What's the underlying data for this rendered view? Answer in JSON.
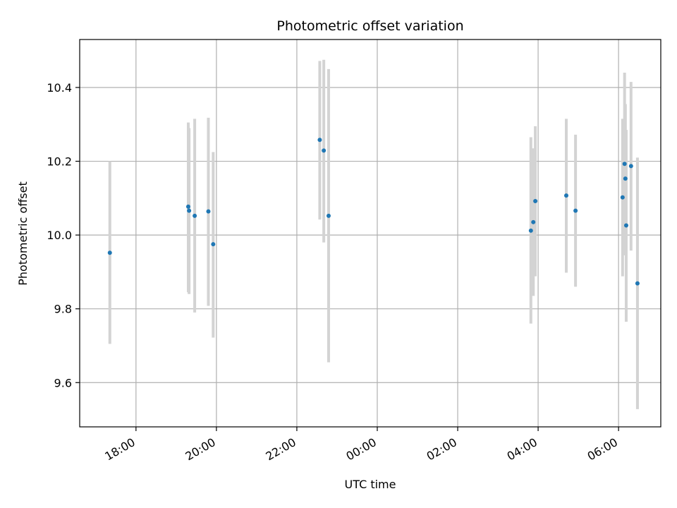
{
  "chart_data": {
    "type": "scatter",
    "title": "Photometric offset variation",
    "xlabel": "UTC time",
    "ylabel": "Photometric offset",
    "xlim_hours": [
      16.6,
      31.05
    ],
    "ylim": [
      9.48,
      10.53
    ],
    "x_ticks": [
      {
        "label": "18:00",
        "hour": 18
      },
      {
        "label": "20:00",
        "hour": 20
      },
      {
        "label": "22:00",
        "hour": 22
      },
      {
        "label": "00:00",
        "hour": 24
      },
      {
        "label": "02:00",
        "hour": 26
      },
      {
        "label": "04:00",
        "hour": 28
      },
      {
        "label": "06:00",
        "hour": 30
      }
    ],
    "y_ticks": [
      9.6,
      9.8,
      10.0,
      10.2,
      10.4
    ],
    "grid": true,
    "point_color": "#1f77b4",
    "errorbar_color": "#d3d3d3",
    "points": [
      {
        "time": "17:20",
        "hour": 17.35,
        "y": 9.952,
        "err_low": 9.705,
        "err_high": 10.2
      },
      {
        "time": "19:18",
        "hour": 19.3,
        "y": 10.077,
        "err_low": 9.845,
        "err_high": 10.305
      },
      {
        "time": "19:19",
        "hour": 19.32,
        "y": 10.066,
        "err_low": 9.84,
        "err_high": 10.29
      },
      {
        "time": "19:28",
        "hour": 19.46,
        "y": 10.052,
        "err_low": 9.79,
        "err_high": 10.315
      },
      {
        "time": "19:48",
        "hour": 19.8,
        "y": 10.064,
        "err_low": 9.808,
        "err_high": 10.318
      },
      {
        "time": "19:55",
        "hour": 19.92,
        "y": 9.975,
        "err_low": 9.722,
        "err_high": 10.225
      },
      {
        "time": "22:34",
        "hour": 22.57,
        "y": 10.258,
        "err_low": 10.042,
        "err_high": 10.472
      },
      {
        "time": "22:40",
        "hour": 22.67,
        "y": 10.229,
        "err_low": 9.98,
        "err_high": 10.475
      },
      {
        "time": "22:47",
        "hour": 22.79,
        "y": 10.052,
        "err_low": 9.655,
        "err_high": 10.45
      },
      {
        "time": "03:49",
        "hour": 27.82,
        "y": 10.012,
        "err_low": 9.76,
        "err_high": 10.265
      },
      {
        "time": "03:53",
        "hour": 27.88,
        "y": 10.035,
        "err_low": 9.835,
        "err_high": 10.235
      },
      {
        "time": "03:56",
        "hour": 27.93,
        "y": 10.092,
        "err_low": 9.888,
        "err_high": 10.295
      },
      {
        "time": "04:42",
        "hour": 28.7,
        "y": 10.107,
        "err_low": 9.898,
        "err_high": 10.315
      },
      {
        "time": "04:56",
        "hour": 28.93,
        "y": 10.066,
        "err_low": 9.86,
        "err_high": 10.272
      },
      {
        "time": "06:06",
        "hour": 30.1,
        "y": 10.102,
        "err_low": 9.888,
        "err_high": 10.315
      },
      {
        "time": "06:09",
        "hour": 30.15,
        "y": 10.193,
        "err_low": 9.945,
        "err_high": 10.44
      },
      {
        "time": "06:10",
        "hour": 30.17,
        "y": 10.153,
        "err_low": 9.95,
        "err_high": 10.355
      },
      {
        "time": "06:11",
        "hour": 30.19,
        "y": 10.026,
        "err_low": 9.765,
        "err_high": 10.285
      },
      {
        "time": "06:18",
        "hour": 30.31,
        "y": 10.187,
        "err_low": 9.958,
        "err_high": 10.415
      },
      {
        "time": "06:28",
        "hour": 30.47,
        "y": 9.869,
        "err_low": 9.528,
        "err_high": 10.21
      }
    ]
  }
}
